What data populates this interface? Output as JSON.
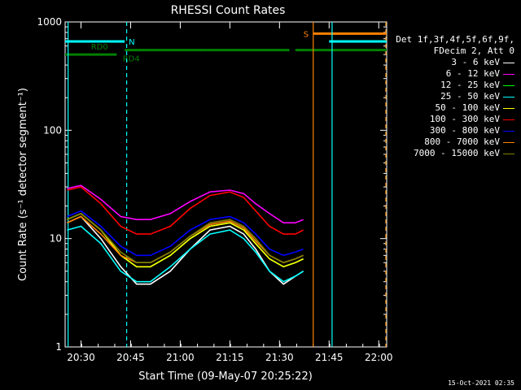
{
  "chart_data": {
    "type": "line",
    "title": "RHESSI Count Rates",
    "xlabel": "Start Time (09-May-07 20:25:22)",
    "ylabel": "Count Rate (s⁻¹ detector segment⁻¹)",
    "y_scale": "log",
    "ylim": [
      1,
      1000
    ],
    "x_range_minutes": [
      20.42,
      22.04
    ],
    "x_ticks": [
      {
        "label": "20:30",
        "value": 20.5
      },
      {
        "label": "20:45",
        "value": 20.75
      },
      {
        "label": "21:00",
        "value": 21.0
      },
      {
        "label": "21:15",
        "value": 21.25
      },
      {
        "label": "21:30",
        "value": 21.5
      },
      {
        "label": "21:45",
        "value": 21.75
      },
      {
        "label": "22:00",
        "value": 22.0
      }
    ],
    "y_ticks": [
      {
        "label": "1",
        "value": 1
      },
      {
        "label": "10",
        "value": 10
      },
      {
        "label": "100",
        "value": 100
      },
      {
        "label": "1000",
        "value": 1000
      }
    ],
    "legend_title": [
      "Det 1f,3f,4f,5f,6f,9f,",
      "FDecim 2, Att 0"
    ],
    "legend_position": "right",
    "x_hours": [
      20.43,
      20.5,
      20.6,
      20.7,
      20.78,
      20.85,
      20.95,
      21.05,
      21.15,
      21.25,
      21.32,
      21.38,
      21.45,
      21.52,
      21.58,
      21.62
    ],
    "series": [
      {
        "name": "3 - 6 keV",
        "color": "#ffffff",
        "values": [
          14,
          16,
          10,
          5.5,
          3.8,
          3.8,
          5,
          8,
          12,
          13,
          11,
          8,
          5,
          3.8,
          4.5,
          5
        ]
      },
      {
        "name": "6 - 12 keV",
        "color": "#ff00ff",
        "values": [
          29,
          31,
          23,
          16,
          15,
          15,
          17,
          22,
          27,
          28,
          26,
          21,
          17,
          14,
          14,
          15
        ]
      },
      {
        "name": "12 - 25 keV",
        "color": "#00ff00",
        "values": [
          15,
          17,
          12,
          7,
          5.5,
          5.5,
          7,
          10,
          13,
          14,
          12,
          9,
          6.5,
          5.5,
          6,
          6.5
        ]
      },
      {
        "name": "25 - 50 keV",
        "color": "#00ffff",
        "values": [
          12,
          13,
          9,
          5,
          4,
          4,
          5.5,
          8,
          11,
          12,
          10,
          7.5,
          5,
          4,
          4.5,
          5
        ]
      },
      {
        "name": "50 - 100 keV",
        "color": "#ffff00",
        "values": [
          15,
          17,
          12,
          7,
          5.5,
          5.5,
          7,
          10,
          13,
          14,
          12,
          9,
          6.5,
          5.5,
          6,
          6.5
        ]
      },
      {
        "name": "100 - 300 keV",
        "color": "#ff0000",
        "values": [
          28,
          30,
          21,
          13,
          11,
          11,
          13,
          19,
          25,
          27,
          24,
          18,
          13,
          11,
          11,
          12
        ]
      },
      {
        "name": "300 - 800 keV",
        "color": "#0000ff",
        "values": [
          16,
          18,
          13,
          8.5,
          7,
          7,
          8.5,
          12,
          15,
          16,
          14,
          11,
          8,
          7,
          7.5,
          8
        ]
      },
      {
        "name": "800 - 7000 keV",
        "color": "#ff8000",
        "values": [
          14,
          16,
          11,
          7,
          6,
          6,
          7.5,
          10.5,
          13.5,
          14.5,
          12.5,
          9.5,
          7,
          6,
          6.5,
          7
        ]
      },
      {
        "name": "7000 - 15000 keV",
        "color": "#808000",
        "values": [
          15,
          17,
          12,
          7.5,
          6,
          6,
          7.5,
          10.5,
          14,
          15,
          13,
          10,
          7,
          6,
          6.5,
          7
        ]
      }
    ],
    "flag_bars": [
      {
        "label": "N",
        "color": "#00ffff",
        "y": 660,
        "segments": [
          [
            20.42,
            20.72
          ],
          [
            21.75,
            22.05
          ]
        ]
      },
      {
        "label": "RD0",
        "color": "#008000",
        "y": 500,
        "segments": [
          [
            20.42,
            20.68
          ]
        ]
      },
      {
        "label": "RD4",
        "color": "#008000",
        "y": 550,
        "segments": [
          [
            20.72,
            21.13
          ],
          [
            21.13,
            21.55
          ],
          [
            21.58,
            22.05
          ]
        ]
      },
      {
        "label": "S",
        "color": "#ff8000",
        "y": 780,
        "segments": [
          [
            21.67,
            22.05
          ]
        ]
      }
    ],
    "vlines": [
      {
        "color": "#00ffff",
        "style": "solid",
        "x": 20.435
      },
      {
        "color": "#00ffff",
        "style": "dashed",
        "x": 20.73
      },
      {
        "color": "#ff8000",
        "style": "solid",
        "x": 21.67
      },
      {
        "color": "#00ffff",
        "style": "solid",
        "x": 21.765
      },
      {
        "color": "#00ffff",
        "style": "dashed",
        "x": 22.045
      },
      {
        "color": "#ff8000",
        "style": "dashed",
        "x": 22.04
      }
    ]
  },
  "footer": {
    "date": "15-Oct-2021 02:35"
  }
}
